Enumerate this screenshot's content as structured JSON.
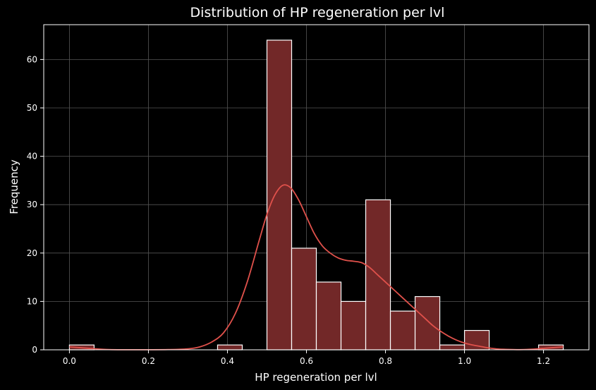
{
  "chart_data": {
    "type": "bar",
    "title": "Distribution of HP regeneration per lvl",
    "xlabel": "HP regeneration per lvl",
    "ylabel": "Frequency",
    "xlim": [
      -0.065,
      1.315
    ],
    "ylim": [
      0,
      67.2
    ],
    "xticks": [
      0.0,
      0.2,
      0.4,
      0.6,
      0.8,
      1.0,
      1.2
    ],
    "xtick_labels": [
      "0.0",
      "0.2",
      "0.4",
      "0.6",
      "0.8",
      "1.0",
      "1.2"
    ],
    "yticks": [
      0,
      10,
      20,
      30,
      40,
      50,
      60
    ],
    "ytick_labels": [
      "0",
      "10",
      "20",
      "30",
      "40",
      "50",
      "60"
    ],
    "grid": true,
    "bins": [
      {
        "x0": 0.0,
        "x1": 0.0625,
        "value": 1
      },
      {
        "x0": 0.375,
        "x1": 0.4375,
        "value": 1
      },
      {
        "x0": 0.5,
        "x1": 0.5625,
        "value": 64
      },
      {
        "x0": 0.5625,
        "x1": 0.625,
        "value": 21
      },
      {
        "x0": 0.625,
        "x1": 0.6875,
        "value": 14
      },
      {
        "x0": 0.6875,
        "x1": 0.75,
        "value": 10
      },
      {
        "x0": 0.75,
        "x1": 0.8125,
        "value": 31
      },
      {
        "x0": 0.8125,
        "x1": 0.875,
        "value": 8
      },
      {
        "x0": 0.875,
        "x1": 0.9375,
        "value": 11
      },
      {
        "x0": 0.9375,
        "x1": 1.0,
        "value": 1
      },
      {
        "x0": 1.0,
        "x1": 1.0625,
        "value": 4
      },
      {
        "x0": 1.1875,
        "x1": 1.25,
        "value": 1
      }
    ],
    "kde": {
      "x": [
        0.0,
        0.05,
        0.1,
        0.15,
        0.2,
        0.25,
        0.3,
        0.33,
        0.36,
        0.39,
        0.42,
        0.45,
        0.48,
        0.5,
        0.52,
        0.54,
        0.56,
        0.58,
        0.6,
        0.62,
        0.64,
        0.66,
        0.68,
        0.7,
        0.72,
        0.74,
        0.76,
        0.78,
        0.8,
        0.82,
        0.84,
        0.86,
        0.88,
        0.9,
        0.92,
        0.94,
        0.96,
        0.98,
        1.0,
        1.02,
        1.04,
        1.06,
        1.08,
        1.1,
        1.15,
        1.2,
        1.25
      ],
      "y": [
        0.6,
        0.3,
        0.05,
        0.02,
        0.02,
        0.05,
        0.2,
        0.6,
        1.6,
        3.5,
        7.5,
        14.0,
        22.5,
        28.0,
        32.0,
        34.0,
        33.5,
        31.0,
        27.5,
        24.0,
        21.5,
        20.0,
        19.0,
        18.5,
        18.3,
        18.0,
        17.0,
        15.5,
        14.0,
        12.5,
        11.0,
        9.5,
        8.0,
        6.5,
        5.0,
        3.8,
        2.8,
        2.0,
        1.4,
        1.0,
        0.7,
        0.4,
        0.2,
        0.1,
        0.05,
        0.3,
        0.6
      ]
    },
    "colors": {
      "background": "#000000",
      "bar_fill": "#722828",
      "bar_edge": "#ffffff",
      "kde_line": "#e0514b",
      "grid": "#555555",
      "axes": "#ffffff",
      "text": "#ffffff"
    }
  }
}
